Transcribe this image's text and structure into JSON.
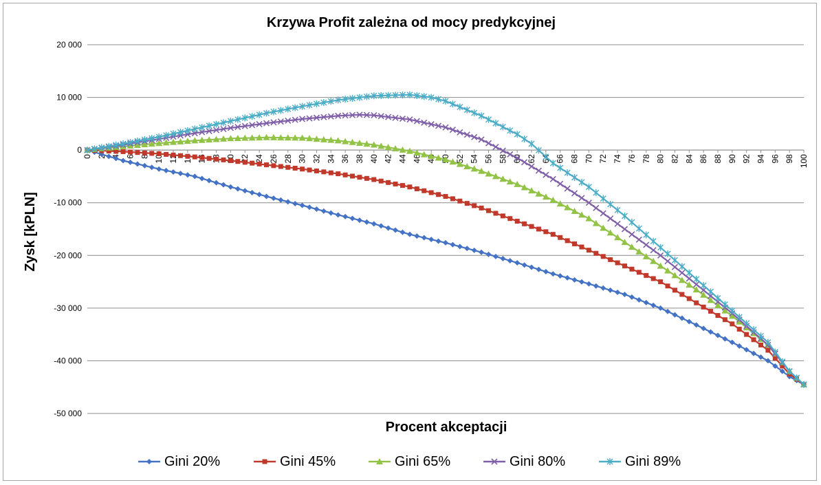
{
  "chart_data": {
    "type": "line",
    "title": "Krzywa Profit zależna od mocy predykcyjnej",
    "xlabel": "Procent akceptacji",
    "ylabel": "Zysk [kPLN]",
    "ylim": [
      -50000,
      20000
    ],
    "yticks": [
      {
        "value": 20000,
        "label": "20 000"
      },
      {
        "value": 10000,
        "label": "10 000"
      },
      {
        "value": 0,
        "label": "0"
      },
      {
        "value": -10000,
        "label": "-10 000"
      },
      {
        "value": -20000,
        "label": "-20 000"
      },
      {
        "value": -30000,
        "label": "-30 000"
      },
      {
        "value": -40000,
        "label": "-40 000"
      },
      {
        "value": -50000,
        "label": "-50 000"
      }
    ],
    "xlim": [
      0,
      100
    ],
    "xtick_step": 2,
    "grid": "horizontal",
    "legend": "bottom",
    "series": [
      {
        "name": "Gini 20%",
        "color": "#4472c4",
        "marker": "diamond",
        "points": [
          [
            0,
            0
          ],
          [
            5,
            -2000
          ],
          [
            10,
            -3600
          ],
          [
            15,
            -5000
          ],
          [
            20,
            -7000
          ],
          [
            25,
            -8800
          ],
          [
            30,
            -10500
          ],
          [
            35,
            -12300
          ],
          [
            40,
            -14000
          ],
          [
            45,
            -16000
          ],
          [
            50,
            -17600
          ],
          [
            55,
            -19400
          ],
          [
            60,
            -21400
          ],
          [
            65,
            -23500
          ],
          [
            70,
            -25400
          ],
          [
            75,
            -27400
          ],
          [
            80,
            -30000
          ],
          [
            85,
            -33200
          ],
          [
            90,
            -36500
          ],
          [
            95,
            -40000
          ],
          [
            98,
            -43000
          ],
          [
            100,
            -44500
          ]
        ]
      },
      {
        "name": "Gini 45%",
        "color": "#c0392b",
        "marker": "square",
        "points": [
          [
            0,
            0
          ],
          [
            5,
            -300
          ],
          [
            10,
            -700
          ],
          [
            15,
            -1300
          ],
          [
            20,
            -2000
          ],
          [
            25,
            -2800
          ],
          [
            30,
            -3600
          ],
          [
            35,
            -4500
          ],
          [
            40,
            -5600
          ],
          [
            45,
            -7000
          ],
          [
            50,
            -8800
          ],
          [
            55,
            -11000
          ],
          [
            60,
            -13500
          ],
          [
            65,
            -16000
          ],
          [
            70,
            -19000
          ],
          [
            75,
            -22000
          ],
          [
            80,
            -25000
          ],
          [
            85,
            -29000
          ],
          [
            90,
            -33000
          ],
          [
            95,
            -38000
          ],
          [
            98,
            -42500
          ],
          [
            100,
            -44500
          ]
        ]
      },
      {
        "name": "Gini 65%",
        "color": "#92c347",
        "marker": "triangle",
        "points": [
          [
            0,
            0
          ],
          [
            5,
            700
          ],
          [
            10,
            1300
          ],
          [
            15,
            1800
          ],
          [
            20,
            2200
          ],
          [
            25,
            2400
          ],
          [
            30,
            2300
          ],
          [
            35,
            1800
          ],
          [
            40,
            1000
          ],
          [
            45,
            -200
          ],
          [
            50,
            -1800
          ],
          [
            55,
            -4000
          ],
          [
            60,
            -6500
          ],
          [
            65,
            -9500
          ],
          [
            70,
            -13000
          ],
          [
            75,
            -17500
          ],
          [
            80,
            -22000
          ],
          [
            85,
            -26500
          ],
          [
            90,
            -31500
          ],
          [
            95,
            -37000
          ],
          [
            98,
            -42000
          ],
          [
            100,
            -44500
          ]
        ]
      },
      {
        "name": "Gini 80%",
        "color": "#7f5fa8",
        "marker": "x",
        "points": [
          [
            0,
            0
          ],
          [
            5,
            1000
          ],
          [
            10,
            2100
          ],
          [
            15,
            3200
          ],
          [
            20,
            4200
          ],
          [
            25,
            5100
          ],
          [
            30,
            5900
          ],
          [
            35,
            6500
          ],
          [
            38,
            6700
          ],
          [
            40,
            6600
          ],
          [
            45,
            5800
          ],
          [
            50,
            4300
          ],
          [
            55,
            2000
          ],
          [
            60,
            -1500
          ],
          [
            65,
            -5500
          ],
          [
            70,
            -10000
          ],
          [
            75,
            -15000
          ],
          [
            80,
            -20000
          ],
          [
            85,
            -25500
          ],
          [
            90,
            -31000
          ],
          [
            95,
            -37000
          ],
          [
            98,
            -42000
          ],
          [
            100,
            -44500
          ]
        ]
      },
      {
        "name": "Gini 89%",
        "color": "#4bacc6",
        "marker": "star",
        "points": [
          [
            0,
            0
          ],
          [
            5,
            1200
          ],
          [
            10,
            2500
          ],
          [
            15,
            4000
          ],
          [
            20,
            5500
          ],
          [
            25,
            7000
          ],
          [
            30,
            8300
          ],
          [
            35,
            9500
          ],
          [
            40,
            10300
          ],
          [
            45,
            10500
          ],
          [
            48,
            10000
          ],
          [
            50,
            9300
          ],
          [
            55,
            6500
          ],
          [
            60,
            3000
          ],
          [
            62,
            1200
          ],
          [
            65,
            -2500
          ],
          [
            70,
            -7000
          ],
          [
            75,
            -12500
          ],
          [
            80,
            -18500
          ],
          [
            85,
            -24500
          ],
          [
            90,
            -30500
          ],
          [
            95,
            -36500
          ],
          [
            98,
            -42000
          ],
          [
            100,
            -44500
          ]
        ]
      }
    ]
  }
}
